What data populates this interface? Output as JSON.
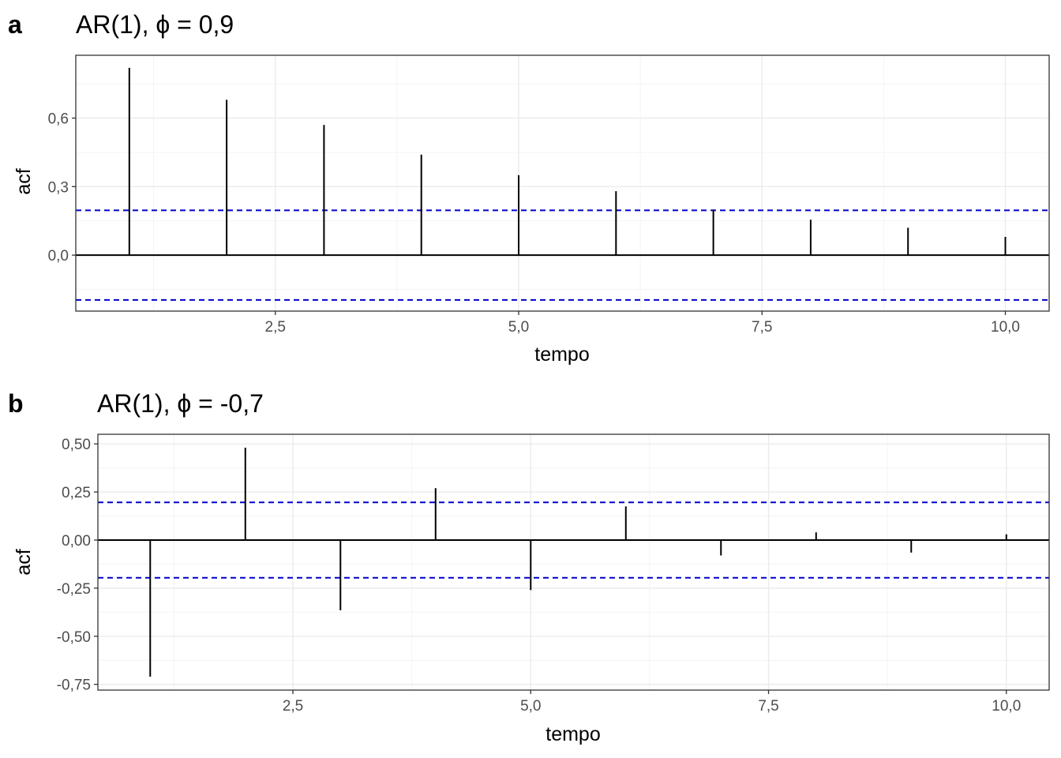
{
  "chart_data": [
    {
      "type": "bar",
      "panel_tag": "a",
      "title": "AR(1), ϕ = 0,9",
      "xlabel": "tempo",
      "ylabel": "acf",
      "x": [
        1,
        2,
        3,
        4,
        5,
        6,
        7,
        8,
        9,
        10
      ],
      "values": [
        0.82,
        0.68,
        0.57,
        0.44,
        0.35,
        0.28,
        0.2,
        0.155,
        0.12,
        0.08
      ],
      "confidence_band": [
        0.196,
        -0.196
      ],
      "xlim": [
        0.45,
        10.45
      ],
      "ylim": [
        -0.245,
        0.875
      ],
      "x_ticks": [
        2.5,
        5.0,
        7.5,
        10.0
      ],
      "x_tick_labels": [
        "2,5",
        "5,0",
        "7,5",
        "10,0"
      ],
      "y_ticks": [
        0.0,
        0.3,
        0.6
      ],
      "y_tick_labels": [
        "0,0",
        "0,3",
        "0,6"
      ],
      "grid": true,
      "ci_color": "#0000cc"
    },
    {
      "type": "bar",
      "panel_tag": "b",
      "title": "AR(1), ϕ = -0,7",
      "xlabel": "tempo",
      "ylabel": "acf",
      "x": [
        1,
        2,
        3,
        4,
        5,
        6,
        7,
        8,
        9,
        10
      ],
      "values": [
        -0.71,
        0.48,
        -0.365,
        0.27,
        -0.26,
        0.175,
        -0.08,
        0.04,
        -0.065,
        0.03
      ],
      "confidence_band": [
        0.196,
        -0.196
      ],
      "xlim": [
        0.45,
        10.45
      ],
      "ylim": [
        -0.78,
        0.55
      ],
      "x_ticks": [
        2.5,
        5.0,
        7.5,
        10.0
      ],
      "x_tick_labels": [
        "2,5",
        "5,0",
        "7,5",
        "10,0"
      ],
      "y_ticks": [
        -0.75,
        -0.5,
        -0.25,
        0.0,
        0.25,
        0.5
      ],
      "y_tick_labels": [
        "-0,75",
        "-0,50",
        "-0,25",
        "0,00",
        "0,25",
        "0,50"
      ],
      "grid": true,
      "ci_color": "#0000cc"
    }
  ]
}
